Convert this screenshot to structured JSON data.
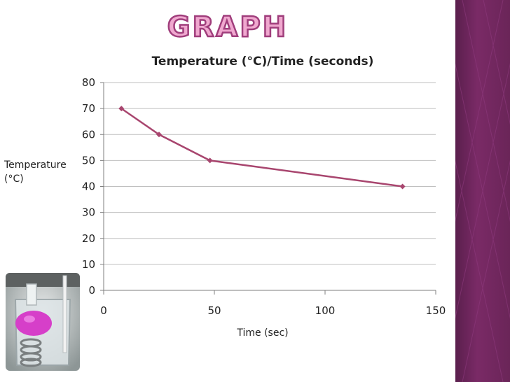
{
  "slide": {
    "heading": "GRAPH"
  },
  "colors": {
    "line": "#a8456e",
    "heading_fill": "#f0a8cf",
    "heading_stroke": "#a03e7c",
    "side_bar": "#6a2558",
    "gridline": "#bfbfbf"
  },
  "chart_data": {
    "type": "line",
    "title": "Temperature (°C)/Time (seconds)",
    "xlabel": "Time (sec)",
    "ylabel": "Temperature (°C)",
    "xlim": [
      0,
      150
    ],
    "ylim": [
      0,
      80
    ],
    "x_ticks": [
      "0",
      "50",
      "100",
      "150"
    ],
    "y_ticks": [
      "0",
      "10",
      "20",
      "30",
      "40",
      "50",
      "60",
      "70",
      "80"
    ],
    "grid": "horizontal",
    "legend": "none",
    "series": [
      {
        "x": [
          8,
          25,
          48,
          135
        ],
        "y": [
          70,
          60,
          50,
          40
        ]
      }
    ]
  }
}
